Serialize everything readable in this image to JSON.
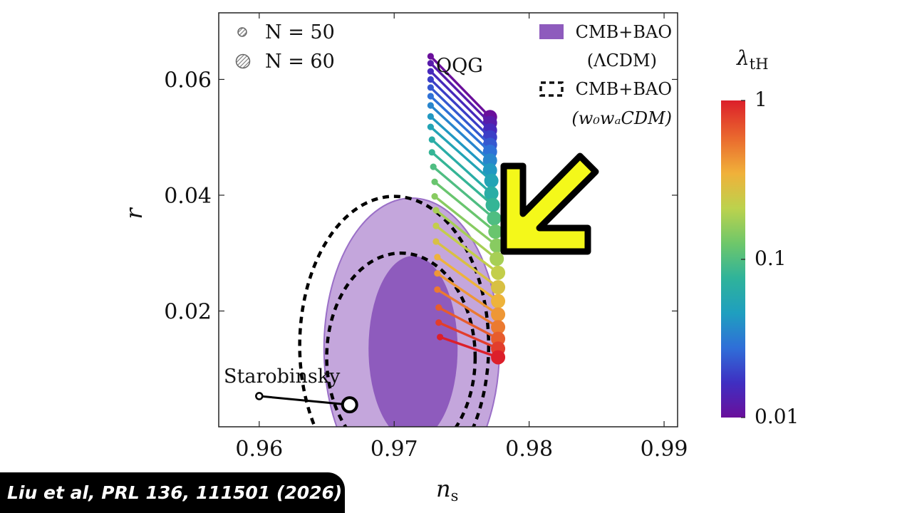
{
  "chart_data": {
    "type": "scatter",
    "xlabel": "n",
    "xlabel_sub": "s",
    "ylabel": "r",
    "xlim": [
      0.957,
      0.991
    ],
    "ylim": [
      0,
      0.0715
    ],
    "x_ticks": [
      "0.96",
      "0.97",
      "0.98",
      "0.99"
    ],
    "y_ticks": [
      "0.02",
      "0.04",
      "0.06"
    ],
    "legend": {
      "marker_n50": "N = 50",
      "marker_n60": "N = 60",
      "contour_solid": "CMB+BAO",
      "contour_solid_model": "(ΛCDM)",
      "contour_dashed": "CMB+BAO",
      "contour_dashed_model": "(w₀wₐCDM)"
    },
    "annotations": {
      "qqg": "QQG",
      "starobinsky": "Starobinsky"
    },
    "colorbar": {
      "label": "λ",
      "label_sub": "tH",
      "scale": "log",
      "range": [
        0.01,
        1
      ],
      "ticks": [
        "1",
        "0.1",
        "0.01"
      ],
      "colors": [
        "#6a0f9b",
        "#3f2fc2",
        "#2f6fd8",
        "#1f9fbf",
        "#2fb39a",
        "#6fc76a",
        "#bcd24d",
        "#f0b13a",
        "#ea6a2e",
        "#dc1f2a"
      ]
    },
    "contours": {
      "lcdm_68": {
        "center": [
          0.9714,
          0.0135
        ],
        "half_width": [
          0.0033,
          0.016
        ],
        "color": "#8e5bbd"
      },
      "lcdm_95": {
        "center": [
          0.9713,
          0.0135
        ],
        "half_width": [
          0.0065,
          0.026
        ],
        "color": "#c4a6dc"
      },
      "w0wa_68": {
        "center": [
          0.9705,
          0.012
        ],
        "half_width": [
          0.0055,
          0.018
        ]
      },
      "w0wa_95": {
        "center": [
          0.97,
          0.014
        ],
        "half_width": [
          0.007,
          0.0258
        ]
      }
    },
    "starobinsky": {
      "n50": [
        0.96,
        0.0053
      ],
      "n60": [
        0.9667,
        0.0038
      ]
    },
    "series": [
      {
        "n50": [
          0.9727,
          0.064
        ],
        "n60": [
          0.9771,
          0.0535
        ]
      },
      {
        "n50": [
          0.9727,
          0.0628
        ],
        "n60": [
          0.9771,
          0.0525
        ]
      },
      {
        "n50": [
          0.9727,
          0.0614
        ],
        "n60": [
          0.9771,
          0.0512
        ]
      },
      {
        "n50": [
          0.9727,
          0.06
        ],
        "n60": [
          0.9771,
          0.05
        ]
      },
      {
        "n50": [
          0.9727,
          0.0586
        ],
        "n60": [
          0.9771,
          0.0487
        ]
      },
      {
        "n50": [
          0.9727,
          0.0571
        ],
        "n60": [
          0.9771,
          0.0475
        ]
      },
      {
        "n50": [
          0.9727,
          0.0555
        ],
        "n60": [
          0.9771,
          0.046
        ]
      },
      {
        "n50": [
          0.9727,
          0.0536
        ],
        "n60": [
          0.9771,
          0.0443
        ]
      },
      {
        "n50": [
          0.9727,
          0.0518
        ],
        "n60": [
          0.9772,
          0.0425
        ]
      },
      {
        "n50": [
          0.9728,
          0.0496
        ],
        "n60": [
          0.9772,
          0.0403
        ]
      },
      {
        "n50": [
          0.9728,
          0.0474
        ],
        "n60": [
          0.9773,
          0.0383
        ]
      },
      {
        "n50": [
          0.9729,
          0.0449
        ],
        "n60": [
          0.9774,
          0.036
        ]
      },
      {
        "n50": [
          0.973,
          0.0423
        ],
        "n60": [
          0.9775,
          0.0337
        ]
      },
      {
        "n50": [
          0.973,
          0.0398
        ],
        "n60": [
          0.9776,
          0.0313
        ]
      },
      {
        "n50": [
          0.9731,
          0.0374
        ],
        "n60": [
          0.9776,
          0.029
        ]
      },
      {
        "n50": [
          0.9731,
          0.0347
        ],
        "n60": [
          0.9777,
          0.0266
        ]
      },
      {
        "n50": [
          0.9731,
          0.032
        ],
        "n60": [
          0.9777,
          0.0241
        ]
      },
      {
        "n50": [
          0.9732,
          0.0293
        ],
        "n60": [
          0.9777,
          0.0217
        ]
      },
      {
        "n50": [
          0.9732,
          0.0265
        ],
        "n60": [
          0.9777,
          0.0194
        ]
      },
      {
        "n50": [
          0.9732,
          0.0237
        ],
        "n60": [
          0.9777,
          0.0172
        ]
      },
      {
        "n50": [
          0.9733,
          0.0206
        ],
        "n60": [
          0.9777,
          0.0152
        ]
      },
      {
        "n50": [
          0.9733,
          0.018
        ],
        "n60": [
          0.9777,
          0.0135
        ]
      },
      {
        "n50": [
          0.9734,
          0.0155
        ],
        "n60": [
          0.9777,
          0.012
        ]
      }
    ]
  },
  "citation": "Liu et al, PRL 136, 111501 (2026)"
}
